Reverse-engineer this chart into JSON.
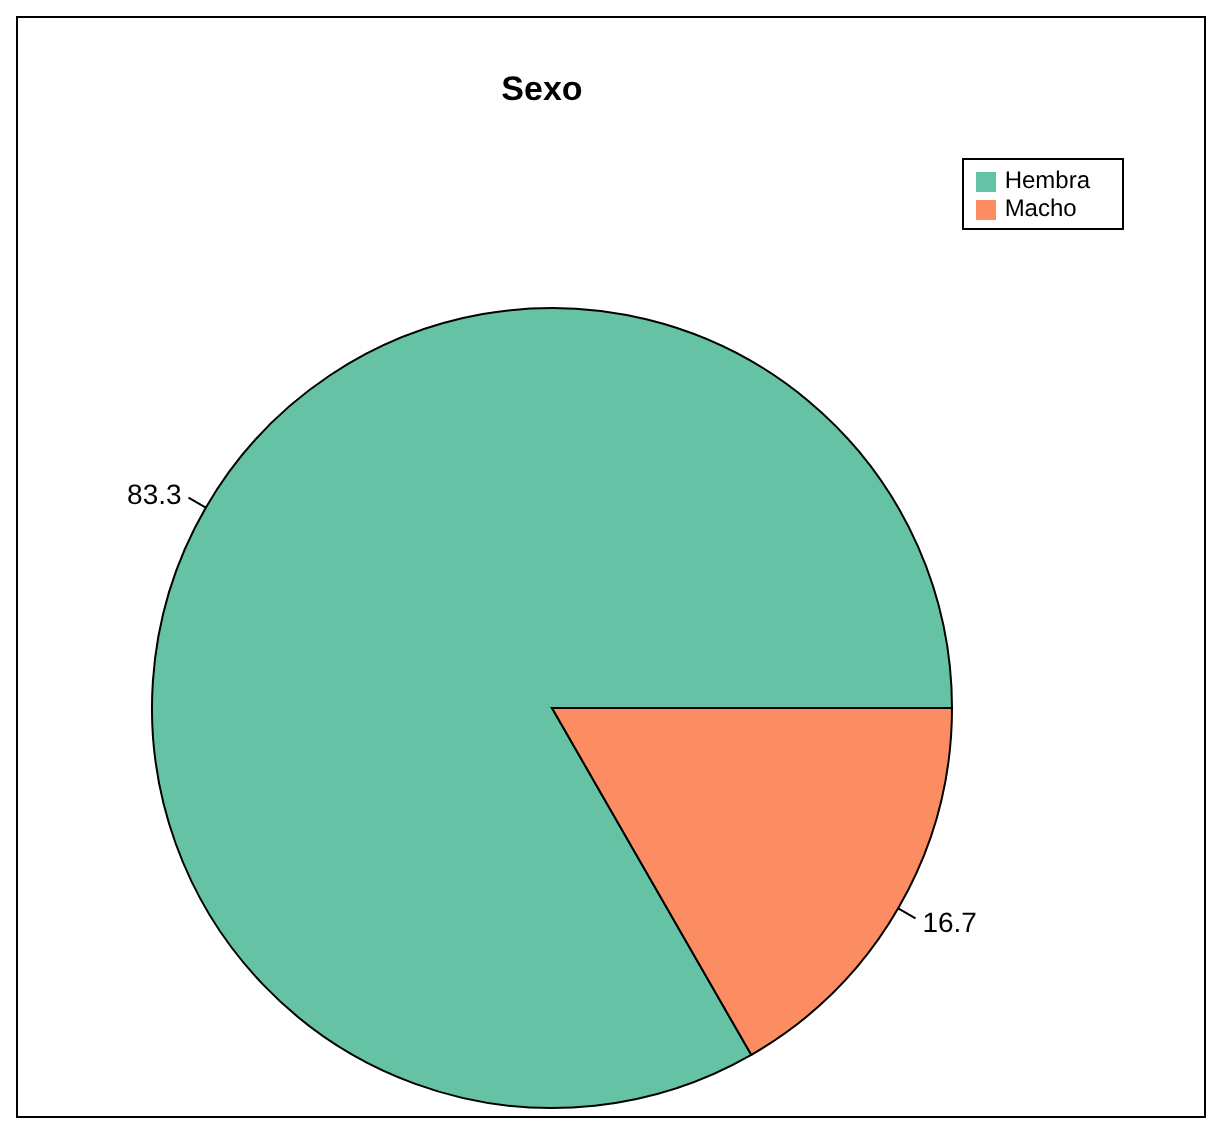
{
  "chart_data": {
    "type": "pie",
    "title": "Sexo",
    "categories": [
      "Hembra",
      "Macho"
    ],
    "values": [
      83.3,
      16.7
    ],
    "colors": [
      "#66c2a5",
      "#fc8d62"
    ],
    "data_labels": true,
    "legend": "top right"
  }
}
